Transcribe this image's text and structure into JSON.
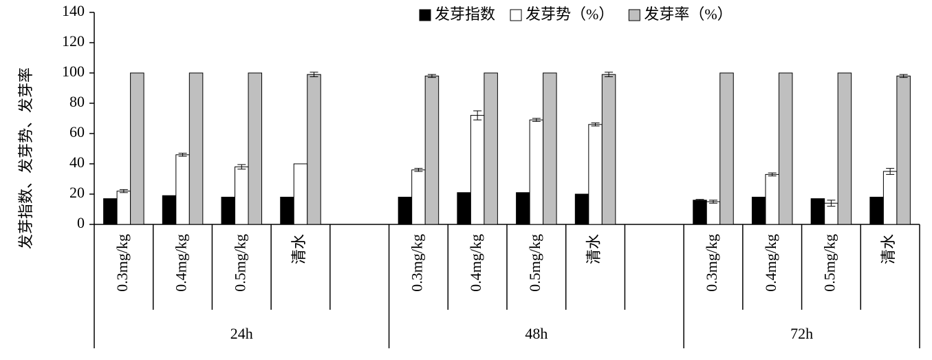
{
  "chart_data": {
    "type": "bar",
    "y_label": "发芽指数、发芽势、发芽率",
    "groups": [
      {
        "name": "24h",
        "categories": [
          "0.3mg/kg",
          "0.4mg/kg",
          "0.5mg/kg",
          "清水",
          null
        ]
      },
      {
        "name": "48h",
        "categories": [
          "0.3mg/kg",
          "0.4mg/kg",
          "0.5mg/kg",
          "清水",
          null
        ]
      },
      {
        "name": "72h",
        "categories": [
          "0.3mg/kg",
          "0.4mg/kg",
          "0.5mg/kg",
          "清水"
        ]
      }
    ],
    "series": [
      {
        "name": "发芽指数",
        "color": "#000000",
        "values": [
          17,
          19,
          18,
          18,
          null,
          18,
          21,
          21,
          20,
          null,
          16,
          18,
          17,
          18
        ],
        "errors": [
          0,
          0,
          0,
          0,
          null,
          0,
          0,
          0,
          0,
          null,
          0.5,
          0,
          0,
          0
        ]
      },
      {
        "name": "发芽势（%）",
        "color": "#ffffff",
        "values": [
          22,
          46,
          38,
          40,
          null,
          36,
          72,
          69,
          66,
          null,
          15,
          33,
          14,
          35
        ],
        "errors": [
          1,
          1,
          1.5,
          0,
          null,
          1,
          3,
          1,
          1,
          null,
          1,
          1,
          2,
          2
        ]
      },
      {
        "name": "发芽率（%）",
        "color": "#bfbfbf",
        "values": [
          100,
          100,
          100,
          99,
          null,
          98,
          100,
          100,
          99,
          null,
          100,
          100,
          100,
          98
        ],
        "errors": [
          0,
          0,
          0,
          1.5,
          null,
          1,
          0,
          0,
          1.5,
          null,
          0,
          0,
          0,
          1
        ]
      }
    ],
    "ylim": [
      0,
      140
    ],
    "yticks": [
      0,
      20,
      40,
      60,
      80,
      100,
      120,
      140
    ],
    "legend": "top-right"
  }
}
